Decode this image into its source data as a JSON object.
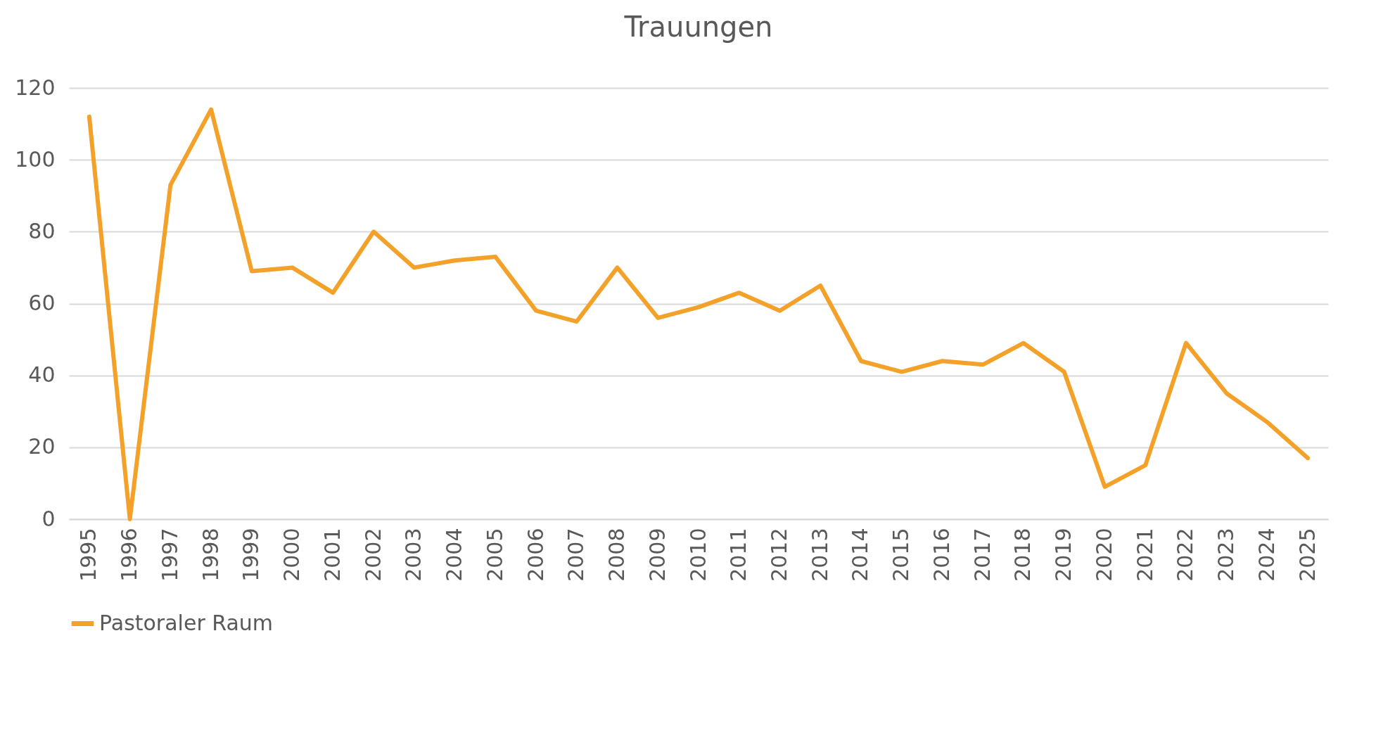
{
  "chart_data": {
    "type": "line",
    "title": "Trauungen",
    "categories": [
      "1995",
      "1996",
      "1997",
      "1998",
      "1999",
      "2000",
      "2001",
      "2002",
      "2003",
      "2004",
      "2005",
      "2006",
      "2007",
      "2008",
      "2009",
      "2010",
      "2011",
      "2012",
      "2013",
      "2014",
      "2015",
      "2016",
      "2017",
      "2018",
      "2019",
      "2020",
      "2021",
      "2022",
      "2023",
      "2024",
      "2025"
    ],
    "series": [
      {
        "name": "Pastoraler Raum",
        "color": "#f4a12a",
        "values": [
          112,
          0,
          93,
          114,
          69,
          70,
          63,
          80,
          70,
          72,
          73,
          58,
          55,
          70,
          56,
          59,
          63,
          58,
          65,
          44,
          41,
          44,
          43,
          49,
          41,
          9,
          15,
          49,
          35,
          27,
          17
        ]
      }
    ],
    "ylim": [
      0,
      120
    ],
    "yticks": [
      0,
      20,
      40,
      60,
      80,
      100,
      120
    ],
    "grid": "y",
    "legend": "bottom",
    "marker": "none",
    "line_style": "solid"
  }
}
